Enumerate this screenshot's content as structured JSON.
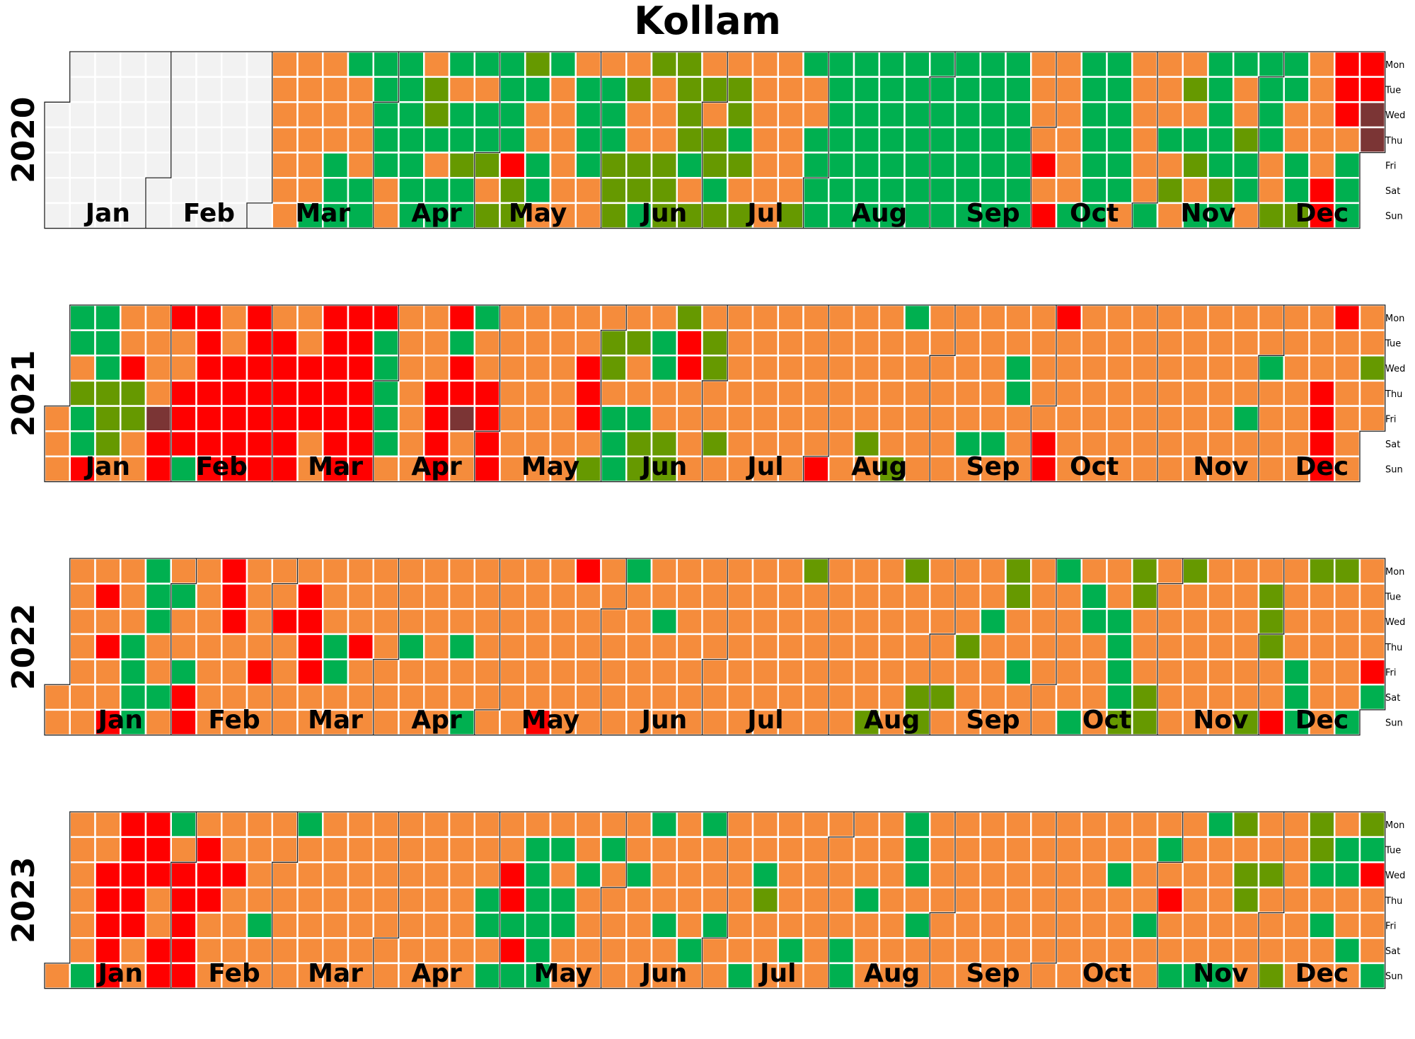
{
  "chart_data": {
    "type": "heatmap",
    "title": "Kollam",
    "start_date": "2020-01-01",
    "years": [
      "2020",
      "2021",
      "2022",
      "2023"
    ],
    "month_labels": [
      "Jan",
      "Feb",
      "Mar",
      "Apr",
      "May",
      "Jun",
      "Jul",
      "Aug",
      "Sep",
      "Oct",
      "Nov",
      "Dec"
    ],
    "weekday_labels": [
      "Mon",
      "Tue",
      "Wed",
      "Thu",
      "Fri",
      "Sat",
      "Sun"
    ],
    "levels": {
      "N": "#f2f2f2",
      "G": "#00b050",
      "L": "#669900",
      "O": "#f58c3c",
      "R": "#ff0000",
      "M": "#7b3535"
    },
    "days": {
      "2020": "NNNNNNNNNNNNNNNNNNNNNNNNNNNNNNNNNNNNNNNNNNNNNNNNNNNNNNNNNNNNNOOOOOOOOOOOOOGOOOOGGGGOOOOGGGGGGGOOGGGGGGGOLLGOGGGOGGLGGGOGGLOLGGGGRLLLGOOGGOGOOOOOOOGGGGOOOGGGLLLOLOOLLGLOOOLLLLLLLGOLOLOLLGLOLLGLOLOOOOOOOOOOOOOLGOOGGGGGGGGGGGGGGGGGGGGGGGGGGGGGGGGGGGGGGGGGGGGGGGGGGGGGGGGGGGGOOOOROROOOOOOGGGGGGGGGGGGGGOOOOOOOGOOOGOLOOLOGLOGGGGGGLGGOOLGGOGGGGOOLGGOOGGLOOOOORRRRROGGGRRMMOGGGGGGOOOOOROOORRRRRGGGGOORGGOOMORGRMRRGGGGGOGGRORRRMOGGGGGGMOOORRRGRGGGRRR",
      "2021": "OOOGGOLGGRGGGLLLOOORLLOOOOOOMRRROORRRGRRRRRRROORRRRRRRRRRRRORRRRRROORRROORRRRRRRRRRRRRRRGGGGGOOOOOOOOOOORRRRRGRRMOOGOORRRROOOOOOOOOOOOOOOOOOOOOOORRROLOLLOGGGOLOOGLLOGGOOLLLRROOOOOLLOOLOOOOOOOOOOOOOOOOOOOOOOOOOOOOROOOOOOOOOOOOLOOOOOOOLGOOOOOOOOOOOOOOOOOOGOOOOOOGOOOGGOOOOOOOORRROOOOOOOOOOOOOOOOOOOOOOOOOOOOOOOOOOOOOOOOOOOOOOOOOOOOGOOOOGOOOOOOOOOOOOOORRRRROOOOOOOOLOOLLOOOOOOOOROOROORRRRGOORGOOOOOGRRRROOOOOOOOOORRRRROOOOOO",
      "2022": "OOOOOOOOOOROROOROOOGGGGGGGOOGOOGOOGRROOOOOOORRROOOOOOOOROOOOROOOOORRRROOOOOGGOOOOOROOOOOOOOOOOOOGOOOOOOOOOOOOOGOOGOOOOOOOOOOOOOOOOOOOOROOOOOOOROOOOOOOOOOOOOGOOOOOOOOGOOOOOOOOOOOOOOOOOOOOOOOOOOOOOOOOOOOOOOOLOOOOOOOOOOOOOOOOOOOLOOOOOOOLOOOOLLOOOOOLOOOOLOOOOOGOOOOLLOOGOOOOOOOOOGOOOOOGOGGOOOOOOGGGGLLLOOOLLOOOOOOOLOOOOOOOOOOOOOOOOOOOLOLLLOOROOOOGGGLOOOOOOLOOOOOGOOOORGOOOOOOROOOOOOGOOOOOOOOOOOOOOLLOOLOOOOOOOOOOOOOGOOOOOOOOOOOGORRRRGROOOOOOOOOOOOOOOOROOOOOOOOROOOOOOOOROOOOOOOOOOOOOGRGGOORROOOO",
      "2023": "OOOOOOOGOORRRRRRRRRROORRROORRGORRRRRORRROOOOOROOOOOOOOGOOOOOOOOOGOOOOOOOOOOOOOOOOOOOOOOOOOOOOOOOOOOOOOOOOOOOOOOOOOOOGGOGOORRGRGOGGGGGGOGOGGOOOOGOOOOOGOOOOOOOGOOOOGOOOGOOOOOOOGOGOOOGOOOOOOOOGOOGLOOOOOOOOGOOOOOOOOOOOOOGGOOOGOOOOOOOOOOGGGOGOOOOOOOOOOOOOOOOOOOOOOOOOOOOOOOOOOOOOOOOOOOOOOOOOOOOOGOOOOOOOOGOOOGOROOGOOOOOOGGOOOOOGLOLLOOOOOLOOOLOOOOOOOLLGOGOOOGGOOGOLGROOOGOOGOOOGOOOGOOOOOOGOOGGGOOOOOOGMMOOOORMROORGOOOOLOOOLLOOOOOLLLGGGOLLLLOMOLLLRROGGOOOORRG"
    }
  }
}
